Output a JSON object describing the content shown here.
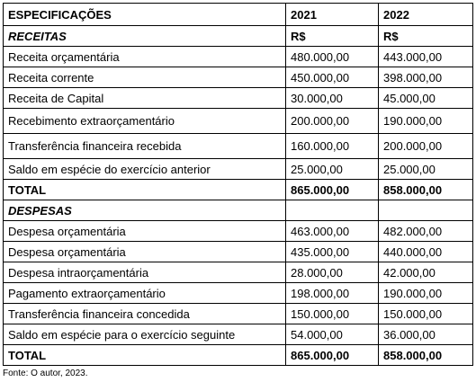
{
  "table": {
    "header": {
      "label": "ESPECIFICAÇÕES",
      "year1": "2021",
      "year2": "2022"
    },
    "receitas": {
      "section_label": "RECEITAS",
      "currency1": "R$",
      "currency2": "R$",
      "rows": [
        {
          "label": "Receita orçamentária",
          "v2021": "480.000,00",
          "v2022": "443.000,00"
        },
        {
          "label": "Receita corrente",
          "v2021": "450.000,00",
          "v2022": "398.000,00"
        },
        {
          "label": "Receita de Capital",
          "v2021": "30.000,00",
          "v2022": "45.000,00"
        },
        {
          "label": "Recebimento extraorçamentário",
          "v2021": "200.000,00",
          "v2022": "190.000,00"
        },
        {
          "label": "Transferência financeira recebida",
          "v2021": "160.000,00",
          "v2022": "200.000,00"
        },
        {
          "label": "Saldo em espécie do exercício anterior",
          "v2021": "25.000,00",
          "v2022": "25.000,00"
        }
      ],
      "total": {
        "label": "TOTAL",
        "v2021": "865.000,00",
        "v2022": "858.000,00"
      }
    },
    "despesas": {
      "section_label": "DESPESAS",
      "rows": [
        {
          "label": "Despesa orçamentária",
          "v2021": "463.000,00",
          "v2022": "482.000,00"
        },
        {
          "label": "Despesa orçamentária",
          "v2021": "435.000,00",
          "v2022": "440.000,00"
        },
        {
          "label": "Despesa intraorçamentária",
          "v2021": "28.000,00",
          "v2022": "42.000,00"
        },
        {
          "label": "Pagamento extraorçamentário",
          "v2021": "198.000,00",
          "v2022": "190.000,00"
        },
        {
          "label": "Transferência financeira concedida",
          "v2021": "150.000,00",
          "v2022": "150.000,00"
        },
        {
          "label": "Saldo em espécie para o exercício seguinte",
          "v2021": "54.000,00",
          "v2022": "36.000,00"
        }
      ],
      "total": {
        "label": "TOTAL",
        "v2021": "865.000,00",
        "v2022": "858.000,00"
      }
    }
  },
  "footer": {
    "source": "Fonte: O autor, 2023."
  }
}
